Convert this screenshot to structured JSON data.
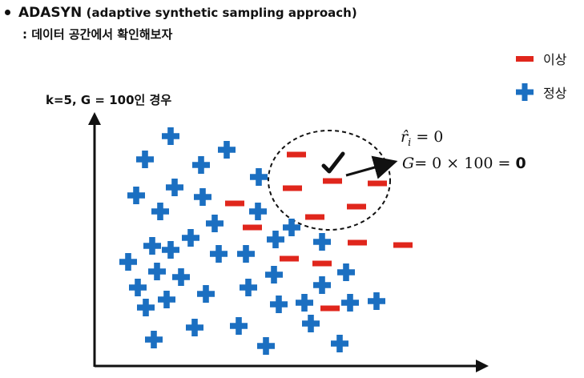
{
  "title": {
    "bold": "ADASYN",
    "rest": "(adaptive synthetic sampling approach)"
  },
  "subtitle": ": 데이터 공간에서 확인해보자",
  "case_label": "k=5, G = 100인 경우",
  "legend": {
    "minority_label": "이상",
    "majority_label": "정상"
  },
  "annotation": {
    "r_hat_eq": "= 0",
    "g_eq": "= 0 × 100 = ",
    "g_result": "0"
  },
  "colors": {
    "minority": "#e0261c",
    "majority": "#1b6fc1",
    "axis": "#111111"
  }
}
